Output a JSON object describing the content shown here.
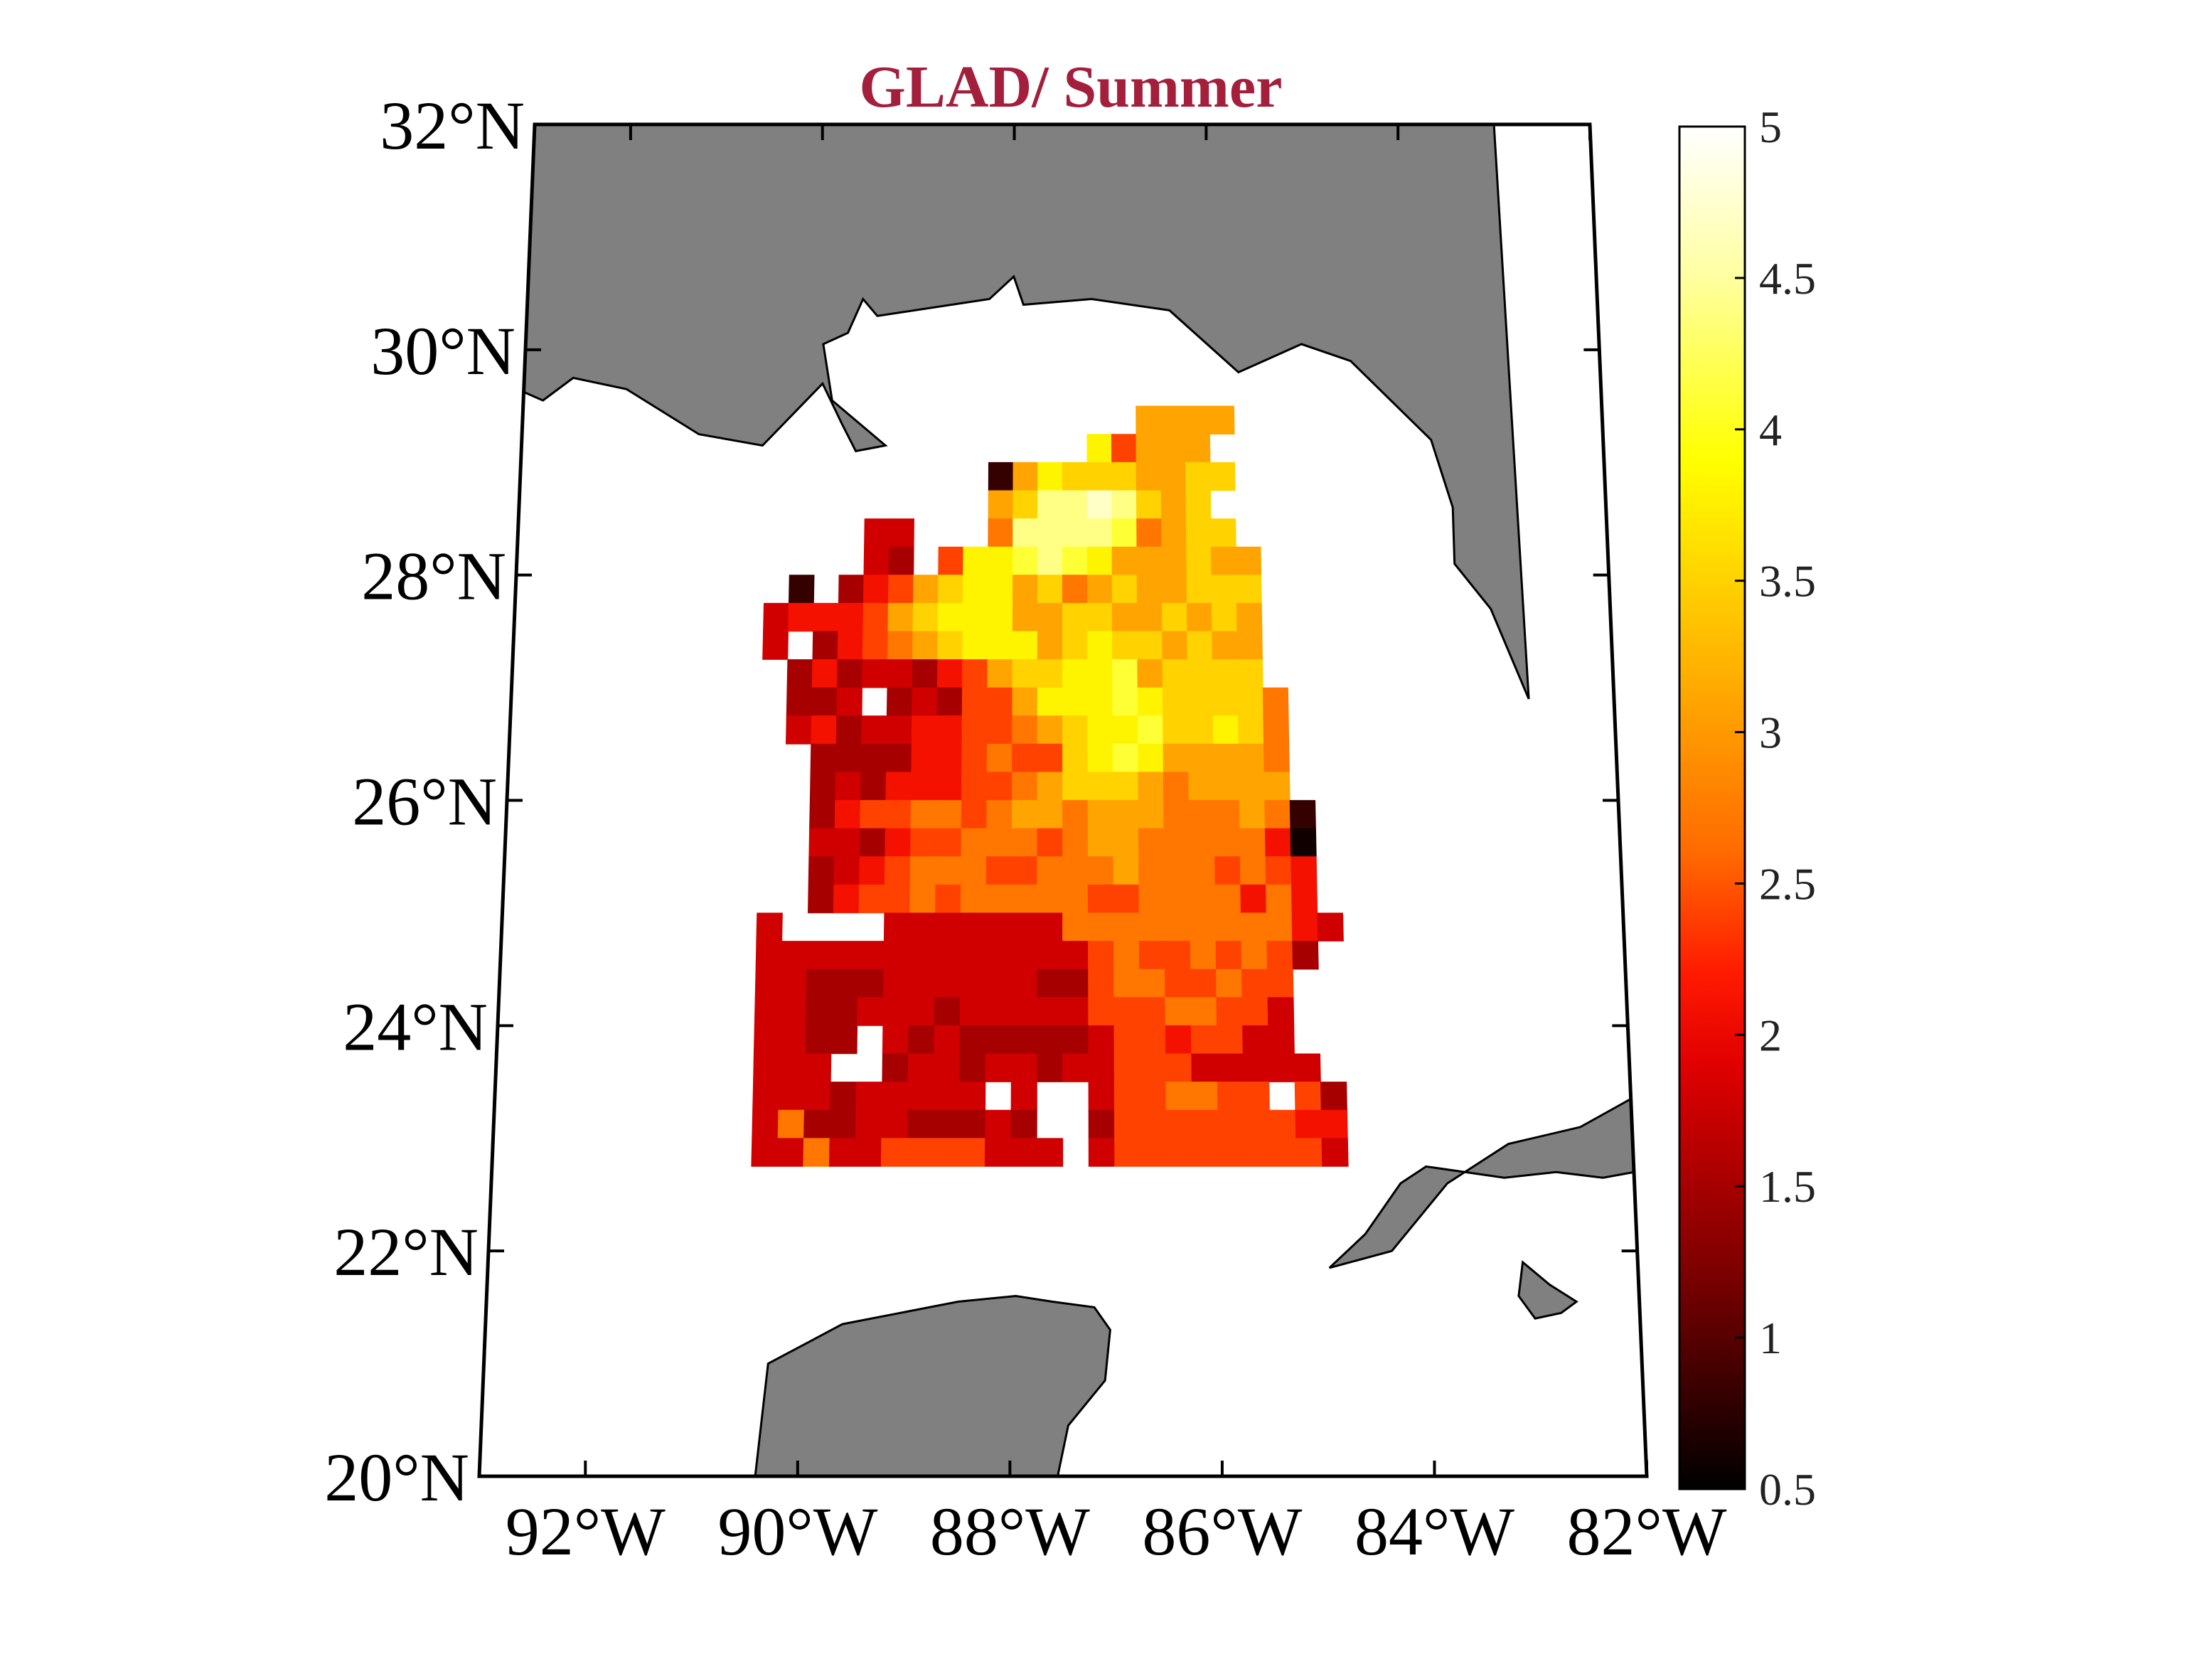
{
  "chart_data": {
    "type": "heatmap",
    "title": "GLAD/ Summer",
    "map": {
      "lon_range": [
        -93,
        -82
      ],
      "lat_range": [
        20,
        32
      ],
      "lat_ticks": [
        {
          "value": 32,
          "label": "32°N"
        },
        {
          "value": 30,
          "label": "30°N"
        },
        {
          "value": 28,
          "label": "28°N"
        },
        {
          "value": 26,
          "label": "26°N"
        },
        {
          "value": 24,
          "label": "24°N"
        },
        {
          "value": 22,
          "label": "22°N"
        },
        {
          "value": 20,
          "label": "20°N"
        }
      ],
      "lon_ticks": [
        {
          "value": -92,
          "label": "92°W"
        },
        {
          "value": -90,
          "label": "90°W"
        },
        {
          "value": -88,
          "label": "88°W"
        },
        {
          "value": -86,
          "label": "86°W"
        },
        {
          "value": -84,
          "label": "84°W"
        },
        {
          "value": -82,
          "label": "82°W"
        }
      ],
      "land_color": "#808080",
      "land": [
        {
          "name": "us-gulf-coast",
          "coords": [
            [
              -93.2,
              32
            ],
            [
              -83,
              32
            ],
            [
              -82.85,
              26.9
            ],
            [
              -83.2,
              27.7
            ],
            [
              -83.55,
              28.1
            ],
            [
              -83.55,
              28.6
            ],
            [
              -83.75,
              29.2
            ],
            [
              -84.55,
              29.9
            ],
            [
              -85.05,
              30.05
            ],
            [
              -85.7,
              29.8
            ],
            [
              -86.4,
              30.35
            ],
            [
              -87.2,
              30.45
            ],
            [
              -87.9,
              30.4
            ],
            [
              -88.0,
              30.65
            ],
            [
              -88.25,
              30.45
            ],
            [
              -89.4,
              30.3
            ],
            [
              -89.55,
              30.45
            ],
            [
              -89.7,
              30.15
            ],
            [
              -89.95,
              30.05
            ],
            [
              -89.85,
              29.55
            ],
            [
              -89.3,
              29.15
            ],
            [
              -89.6,
              29.1
            ],
            [
              -89.75,
              29.35
            ],
            [
              -89.95,
              29.7
            ],
            [
              -90.55,
              29.15
            ],
            [
              -91.2,
              29.25
            ],
            [
              -91.95,
              29.65
            ],
            [
              -92.5,
              29.75
            ],
            [
              -92.8,
              29.55
            ],
            [
              -93.2,
              29.7
            ]
          ]
        },
        {
          "name": "cuba",
          "coords": [
            [
              -82,
              23.35
            ],
            [
              -82.5,
              23.1
            ],
            [
              -83.2,
              22.95
            ],
            [
              -83.8,
              22.6
            ],
            [
              -84.35,
              22.0
            ],
            [
              -84.95,
              21.85
            ],
            [
              -84.6,
              22.15
            ],
            [
              -84.25,
              22.6
            ],
            [
              -84.0,
              22.75
            ],
            [
              -83.25,
              22.65
            ],
            [
              -82.75,
              22.7
            ],
            [
              -82.3,
              22.65
            ],
            [
              -82,
              22.7
            ]
          ]
        },
        {
          "name": "isla-de-la-juventud",
          "coords": [
            [
              -83.1,
              21.9
            ],
            [
              -82.85,
              21.7
            ],
            [
              -82.6,
              21.55
            ],
            [
              -82.75,
              21.45
            ],
            [
              -83.0,
              21.4
            ],
            [
              -83.15,
              21.6
            ]
          ]
        },
        {
          "name": "yucatan-peninsula",
          "coords": [
            [
              -90.4,
              20
            ],
            [
              -90.3,
              21.0
            ],
            [
              -89.6,
              21.35
            ],
            [
              -88.5,
              21.55
            ],
            [
              -87.95,
              21.6
            ],
            [
              -87.6,
              21.55
            ],
            [
              -87.2,
              21.5
            ],
            [
              -87.05,
              21.3
            ],
            [
              -87.1,
              20.85
            ],
            [
              -87.45,
              20.45
            ],
            [
              -87.55,
              20
            ]
          ]
        }
      ]
    },
    "colorbar": {
      "min": 0.5,
      "max": 5,
      "ticks": [
        {
          "value": 5,
          "label": "5"
        },
        {
          "value": 4.5,
          "label": "4.5"
        },
        {
          "value": 4,
          "label": "4"
        },
        {
          "value": 3.5,
          "label": "3.5"
        },
        {
          "value": 3,
          "label": "3"
        },
        {
          "value": 2.5,
          "label": "2.5"
        },
        {
          "value": 2,
          "label": "2"
        },
        {
          "value": 1.5,
          "label": "1.5"
        },
        {
          "value": 1,
          "label": "1"
        },
        {
          "value": 0.5,
          "label": "0.5"
        }
      ],
      "colormap": "hot",
      "stops": [
        {
          "value": 0.5,
          "color": "#000000"
        },
        {
          "value": 1.2,
          "color": "#7a0000"
        },
        {
          "value": 1.9,
          "color": "#e00000"
        },
        {
          "value": 2.2,
          "color": "#ff1a00"
        },
        {
          "value": 2.6,
          "color": "#ff6a00"
        },
        {
          "value": 3.2,
          "color": "#ffb000"
        },
        {
          "value": 3.9,
          "color": "#ffff00"
        },
        {
          "value": 4.5,
          "color": "#ffffa0"
        },
        {
          "value": 5.0,
          "color": "#ffffff"
        }
      ]
    },
    "grid": {
      "lon0": -90.5,
      "lat_top": 29.5,
      "dlon": 0.25,
      "dlat": 0.25,
      "rows": [
        "               FFFF         ",
        "             HDFFF          ",
        "         3FHGGGFFGG         ",
        "         FGJJKJGFG          ",
        "    AA   EJJJJIEFGG         ",
        "    AB DHHIJIHFFFGFF        ",
        " 3 BCDFGHHFGEFGFFGGG        ",
        "ACCCDFGHHHFFGGFFGFGF        ",
        "A BCDEFGHHHFGHGGFGFF        ",
        " BCBAABCDFGGHHIFGGGG        ",
        " BBA BABDDFHHHIHGGGGE       ",
        " ACBAACCDDEFGHHIGGHGE       ",
        "  BBBBCCDEDDGHIHFFFFE       ",
        "  BABCCCDDEFGGGFEFFFF       ",
        "  BCDDEEDEFFEFFFEEEFE3      ",
        "  AABCDDEEEDEFFEEEEEC1      ",
        "  BACDEEEDDEEEFEEEDEDC      ",
        "  BCDDEDEEEEEDDEEEECEC      ",
        "A    AAAAAAAEEEEEEEEECA     ",
        "AAAAAAAAAAAAADEDDEDEDB      ",
        "AABBBAAAAAABBDEEDDEDD       ",
        "AABBAAABAAAAADDDEEDDA       ",
        "AABB ABABBBBBADDCDDAA       ",
        "AAA  BAABAABAADDDAAAAA      ",
        "AAABAAAAA A  ADDEEDD DB     ",
        "AEBBAABBBAB  BDDDDDDDCC     ",
        "AAEAADDDDAAA ADDDDDDDDA     "
      ],
      "value_codes": {
        "1": 0.6,
        "3": 0.8,
        "A": 1.8,
        "B": 1.5,
        "C": 2.1,
        "D": 2.4,
        "E": 2.7,
        "F": 3.1,
        "G": 3.5,
        "H": 3.8,
        "I": 4.1,
        "J": 4.4,
        "K": 4.7
      }
    }
  }
}
